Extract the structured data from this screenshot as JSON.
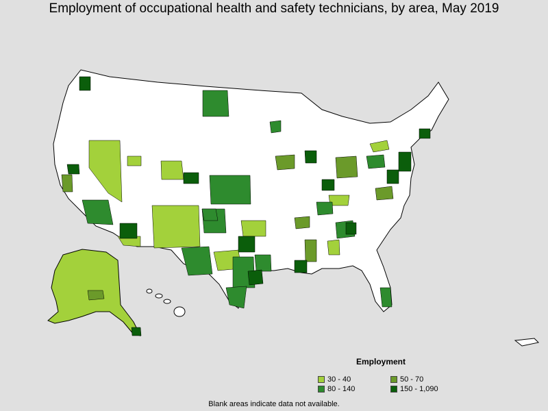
{
  "title": "Employment of occupational health and safety technicians, by area, May 2019",
  "legend": {
    "title": "Employment",
    "items": [
      {
        "label": "30 - 40",
        "color": "#a3d13b"
      },
      {
        "label": "50 - 70",
        "color": "#6b9a2a"
      },
      {
        "label": "80 - 140",
        "color": "#2e8b2e"
      },
      {
        "label": "150 - 1,090",
        "color": "#0b5e0b"
      }
    ]
  },
  "footnote": "Blank areas indicate data not available.",
  "colors": {
    "background": "#e0e0e0",
    "land": "#ffffff",
    "border": "#000000"
  }
}
